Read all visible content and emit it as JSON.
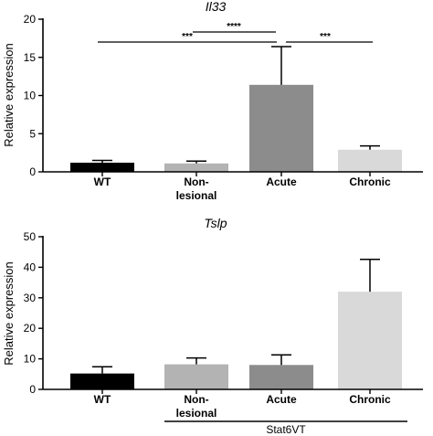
{
  "chart_data": [
    {
      "type": "bar",
      "title": "Il33",
      "ylabel": "Relative expression",
      "ylim": [
        0,
        20
      ],
      "yticks": [
        0,
        5,
        10,
        15,
        20
      ],
      "categories": [
        [
          "WT"
        ],
        [
          "Non-",
          "lesional"
        ],
        [
          "Acute"
        ],
        [
          "Chronic"
        ]
      ],
      "values": [
        1.2,
        1.1,
        11.4,
        2.9
      ],
      "errors": [
        0.3,
        0.3,
        5.0,
        0.5
      ],
      "bar_colors": [
        "#000000",
        "#b3b3b3",
        "#8c8c8c",
        "#d9d9d9"
      ],
      "significance": [
        {
          "from": 0,
          "to": 2,
          "label": "***"
        },
        {
          "from": 1,
          "to": 2,
          "label": "****"
        },
        {
          "from": 2,
          "to": 3,
          "label": "***"
        }
      ]
    },
    {
      "type": "bar",
      "title": "Tslp",
      "ylabel": "Relative expression",
      "ylim": [
        0,
        50
      ],
      "yticks": [
        0,
        10,
        20,
        30,
        40,
        50
      ],
      "categories": [
        [
          "WT"
        ],
        [
          "Non-",
          "lesional"
        ],
        [
          "Acute"
        ],
        [
          "Chronic"
        ]
      ],
      "values": [
        5.2,
        8.2,
        8.0,
        32.0
      ],
      "errors": [
        2.2,
        2.1,
        3.3,
        10.6
      ],
      "bar_colors": [
        "#000000",
        "#b3b3b3",
        "#8c8c8c",
        "#d9d9d9"
      ],
      "group_label": {
        "text": "Stat6VT",
        "from": 1,
        "to": 3
      }
    }
  ]
}
